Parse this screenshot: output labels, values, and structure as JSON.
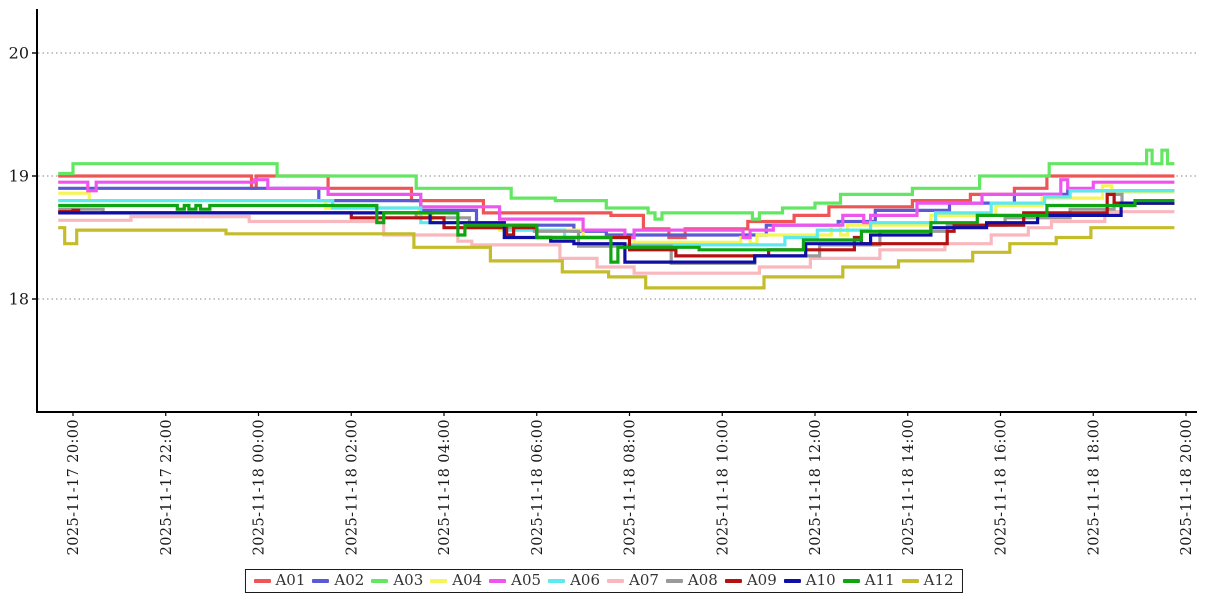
{
  "chart_data": {
    "type": "line",
    "step_mode": "post",
    "title": "",
    "xlabel": "",
    "ylabel": "",
    "grid": {
      "axis": "y",
      "style": "dotted",
      "color": "#888888"
    },
    "x_axis": {
      "unit": "datetime",
      "tick_hours": [
        0,
        2,
        4,
        6,
        8,
        10,
        12,
        14,
        16,
        18,
        20,
        22,
        24
      ],
      "tick_labels": [
        "2025-11-17 20:00",
        "2025-11-17 22:00",
        "2025-11-18 00:00",
        "2025-11-18 02:00",
        "2025-11-18 04:00",
        "2025-11-18 06:00",
        "2025-11-18 08:00",
        "2025-11-18 10:00",
        "2025-11-18 12:00",
        "2025-11-18 14:00",
        "2025-11-18 16:00",
        "2025-11-18 18:00",
        "2025-11-18 20:00"
      ]
    },
    "y_axis": {
      "ticks": [
        18,
        19,
        20
      ],
      "range": [
        17.08,
        20.37
      ]
    },
    "x_range_hours": [
      -0.32,
      23.75
    ],
    "legend": {
      "position": "bottom-center"
    },
    "series": [
      {
        "name": "A01",
        "color": "#ee5555",
        "points": [
          [
            -0.32,
            19.0
          ],
          [
            3.85,
            18.9
          ],
          [
            3.95,
            19.0
          ],
          [
            5.5,
            18.9
          ],
          [
            7.3,
            18.8
          ],
          [
            8.85,
            18.7
          ],
          [
            11.6,
            18.68
          ],
          [
            12.3,
            18.57
          ],
          [
            12.85,
            18.5
          ],
          [
            13.2,
            18.57
          ],
          [
            14.55,
            18.63
          ],
          [
            15.55,
            18.68
          ],
          [
            16.3,
            18.75
          ],
          [
            18.1,
            18.8
          ],
          [
            19.35,
            18.85
          ],
          [
            20.3,
            18.9
          ],
          [
            21.0,
            19.0
          ]
        ]
      },
      {
        "name": "A02",
        "color": "#5a5ad6",
        "points": [
          [
            -0.32,
            18.9
          ],
          [
            5.3,
            18.8
          ],
          [
            7.5,
            18.72
          ],
          [
            8.7,
            18.6
          ],
          [
            10.8,
            18.55
          ],
          [
            11.5,
            18.52
          ],
          [
            14.95,
            18.6
          ],
          [
            16.5,
            18.63
          ],
          [
            17.3,
            18.72
          ],
          [
            18.9,
            18.78
          ],
          [
            20.3,
            18.85
          ],
          [
            21.45,
            18.88
          ]
        ]
      },
      {
        "name": "A03",
        "color": "#63e763",
        "points": [
          [
            -0.32,
            19.02
          ],
          [
            0.0,
            19.1
          ],
          [
            4.4,
            19.0
          ],
          [
            7.4,
            18.9
          ],
          [
            9.45,
            18.82
          ],
          [
            10.4,
            18.8
          ],
          [
            11.5,
            18.74
          ],
          [
            12.4,
            18.7
          ],
          [
            12.55,
            18.65
          ],
          [
            12.7,
            18.7
          ],
          [
            14.65,
            18.65
          ],
          [
            14.8,
            18.7
          ],
          [
            15.3,
            18.74
          ],
          [
            16.0,
            18.78
          ],
          [
            16.55,
            18.85
          ],
          [
            18.1,
            18.9
          ],
          [
            19.55,
            19.0
          ],
          [
            21.05,
            19.1
          ],
          [
            23.15,
            19.21
          ],
          [
            23.27,
            19.1
          ],
          [
            23.48,
            19.21
          ],
          [
            23.6,
            19.1
          ]
        ]
      },
      {
        "name": "A04",
        "color": "#f5f556",
        "points": [
          [
            -0.32,
            18.86
          ],
          [
            0.35,
            18.8
          ],
          [
            5.45,
            18.74
          ],
          [
            7.45,
            18.68
          ],
          [
            7.75,
            18.62
          ],
          [
            9.2,
            18.56
          ],
          [
            11.0,
            18.5
          ],
          [
            12.1,
            18.46
          ],
          [
            14.4,
            18.5
          ],
          [
            14.6,
            18.45
          ],
          [
            14.75,
            18.52
          ],
          [
            16.35,
            18.6
          ],
          [
            16.55,
            18.52
          ],
          [
            16.7,
            18.6
          ],
          [
            18.5,
            18.68
          ],
          [
            19.9,
            18.76
          ],
          [
            20.9,
            18.82
          ],
          [
            22.2,
            18.92
          ],
          [
            22.4,
            18.87
          ]
        ]
      },
      {
        "name": "A05",
        "color": "#ee55ee",
        "points": [
          [
            -0.32,
            18.95
          ],
          [
            0.32,
            18.88
          ],
          [
            0.5,
            18.95
          ],
          [
            3.92,
            18.97
          ],
          [
            4.2,
            18.9
          ],
          [
            5.5,
            18.85
          ],
          [
            7.5,
            18.75
          ],
          [
            9.2,
            18.65
          ],
          [
            11.0,
            18.56
          ],
          [
            11.9,
            18.5
          ],
          [
            12.1,
            18.56
          ],
          [
            14.45,
            18.5
          ],
          [
            14.6,
            18.56
          ],
          [
            15.1,
            18.6
          ],
          [
            16.6,
            18.68
          ],
          [
            17.05,
            18.62
          ],
          [
            17.2,
            18.68
          ],
          [
            18.2,
            18.78
          ],
          [
            19.6,
            18.85
          ],
          [
            21.3,
            18.97
          ],
          [
            21.45,
            18.9
          ],
          [
            22.0,
            18.95
          ]
        ]
      },
      {
        "name": "A06",
        "color": "#5ce9ef",
        "points": [
          [
            -0.32,
            18.8
          ],
          [
            5.6,
            18.74
          ],
          [
            7.5,
            18.62
          ],
          [
            9.3,
            18.56
          ],
          [
            10.6,
            18.5
          ],
          [
            11.6,
            18.44
          ],
          [
            15.35,
            18.5
          ],
          [
            16.05,
            18.56
          ],
          [
            17.2,
            18.62
          ],
          [
            18.6,
            18.7
          ],
          [
            19.8,
            18.78
          ],
          [
            20.95,
            18.83
          ],
          [
            21.5,
            18.88
          ]
        ]
      },
      {
        "name": "A07",
        "color": "#f8b8be",
        "points": [
          [
            -0.32,
            18.64
          ],
          [
            1.25,
            18.67
          ],
          [
            3.8,
            18.63
          ],
          [
            6.7,
            18.52
          ],
          [
            8.3,
            18.47
          ],
          [
            8.6,
            18.44
          ],
          [
            10.5,
            18.33
          ],
          [
            11.3,
            18.26
          ],
          [
            12.1,
            18.21
          ],
          [
            14.8,
            18.26
          ],
          [
            15.9,
            18.33
          ],
          [
            17.4,
            18.4
          ],
          [
            18.8,
            18.45
          ],
          [
            19.8,
            18.52
          ],
          [
            20.6,
            18.58
          ],
          [
            21.1,
            18.63
          ],
          [
            22.25,
            18.71
          ]
        ]
      },
      {
        "name": "A08",
        "color": "#9a9a9a",
        "points": [
          [
            -0.32,
            18.73
          ],
          [
            0.65,
            18.7
          ],
          [
            7.4,
            18.66
          ],
          [
            8.55,
            18.58
          ],
          [
            9.95,
            18.55
          ],
          [
            10.9,
            18.43
          ],
          [
            12.9,
            18.29
          ],
          [
            14.7,
            18.35
          ],
          [
            16.1,
            18.44
          ],
          [
            17.4,
            18.55
          ],
          [
            18.85,
            18.6
          ],
          [
            20.1,
            18.66
          ],
          [
            21.5,
            18.73
          ],
          [
            22.45,
            18.85
          ],
          [
            22.62,
            18.78
          ]
        ]
      },
      {
        "name": "A09",
        "color": "#b41212",
        "points": [
          [
            -0.32,
            18.71
          ],
          [
            0.0,
            18.72
          ],
          [
            0.12,
            18.7
          ],
          [
            6.0,
            18.66
          ],
          [
            8.0,
            18.58
          ],
          [
            9.35,
            18.52
          ],
          [
            9.5,
            18.58
          ],
          [
            10.0,
            18.5
          ],
          [
            12.0,
            18.4
          ],
          [
            13.0,
            18.35
          ],
          [
            15.0,
            18.4
          ],
          [
            16.85,
            18.5
          ],
          [
            17.0,
            18.45
          ],
          [
            18.85,
            18.55
          ],
          [
            19.0,
            18.6
          ],
          [
            20.5,
            18.7
          ],
          [
            22.3,
            18.85
          ],
          [
            22.45,
            18.78
          ]
        ]
      },
      {
        "name": "A10",
        "color": "#0f0fa5",
        "points": [
          [
            -0.32,
            18.7
          ],
          [
            7.7,
            18.62
          ],
          [
            9.3,
            18.5
          ],
          [
            10.3,
            18.47
          ],
          [
            10.8,
            18.45
          ],
          [
            11.9,
            18.3
          ],
          [
            14.7,
            18.35
          ],
          [
            15.8,
            18.45
          ],
          [
            17.2,
            18.52
          ],
          [
            18.5,
            18.58
          ],
          [
            19.7,
            18.62
          ],
          [
            20.8,
            18.68
          ],
          [
            22.6,
            18.78
          ]
        ]
      },
      {
        "name": "A11",
        "color": "#0fa512",
        "points": [
          [
            -0.32,
            18.76
          ],
          [
            2.25,
            18.73
          ],
          [
            2.4,
            18.76
          ],
          [
            2.5,
            18.73
          ],
          [
            2.65,
            18.76
          ],
          [
            2.75,
            18.73
          ],
          [
            2.95,
            18.76
          ],
          [
            6.55,
            18.62
          ],
          [
            6.7,
            18.7
          ],
          [
            8.3,
            18.52
          ],
          [
            8.45,
            18.6
          ],
          [
            10.0,
            18.5
          ],
          [
            11.6,
            18.3
          ],
          [
            11.75,
            18.42
          ],
          [
            13.5,
            18.4
          ],
          [
            15.6,
            18.4
          ],
          [
            15.75,
            18.48
          ],
          [
            17.0,
            18.55
          ],
          [
            18.5,
            18.62
          ],
          [
            19.5,
            18.68
          ],
          [
            21.0,
            18.76
          ],
          [
            22.9,
            18.8
          ]
        ]
      },
      {
        "name": "A12",
        "color": "#c4bc2b",
        "points": [
          [
            -0.32,
            18.58
          ],
          [
            -0.18,
            18.45
          ],
          [
            0.08,
            18.56
          ],
          [
            3.3,
            18.53
          ],
          [
            7.35,
            18.42
          ],
          [
            9.0,
            18.31
          ],
          [
            10.55,
            18.22
          ],
          [
            11.55,
            18.18
          ],
          [
            12.35,
            18.09
          ],
          [
            14.9,
            18.18
          ],
          [
            16.6,
            18.26
          ],
          [
            17.8,
            18.31
          ],
          [
            19.4,
            18.38
          ],
          [
            20.2,
            18.45
          ],
          [
            21.2,
            18.5
          ],
          [
            21.95,
            18.58
          ]
        ]
      }
    ]
  }
}
